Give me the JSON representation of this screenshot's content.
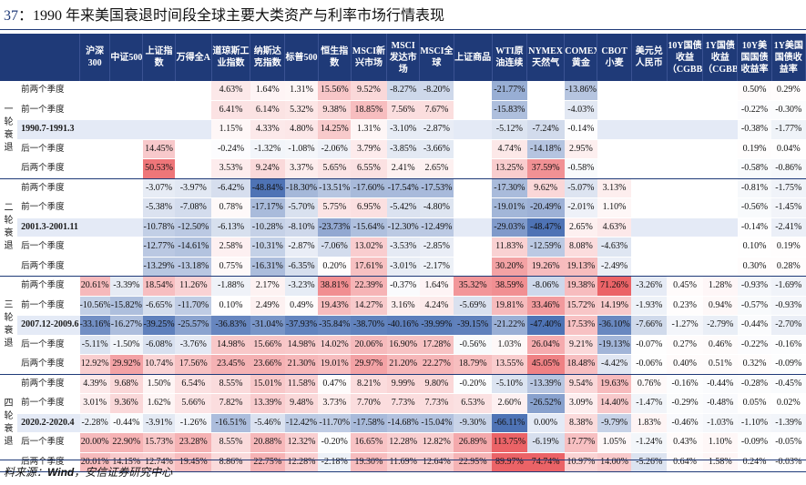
{
  "title": {
    "number": "37",
    "text": "1990 年来美国衰退时间段全球主要大类资产与利率市场行情表现"
  },
  "source": {
    "prefix": "料来源：",
    "name": "Wind",
    "suffix": "，安信证券研究中心"
  },
  "colors": {
    "header_bg": "#1f3a78",
    "positive_max": "#e8474c",
    "negative_max": "#2f5aa8",
    "mid_row_bg": "#e4eaf6"
  },
  "columns": [
    "沪深300",
    "中证500",
    "上证指数",
    "万得全A",
    "道琼斯工业指数",
    "纳斯达克指数",
    "标普500",
    "恒生指数",
    "MSCI新兴市场",
    "MSCI发达市场",
    "MSCI全球",
    "上证商品",
    "WTI原油连续",
    "NYMEX天然气",
    "COMEX黄金",
    "CBOT小麦",
    "美元兑人民币",
    "10Y国债收益（CGBB）",
    "1Y国债收益（CGBB）",
    "10Y美国国债收益率",
    "1Y美国国债收益率"
  ],
  "groups": [
    {
      "name": "一轮衰退",
      "rows": [
        {
          "label": "前两个季度",
          "values": [
            "",
            "",
            "",
            "",
            "4.63%",
            "1.64%",
            "1.31%",
            "15.56%",
            "9.52%",
            "-8.27%",
            "-8.20%",
            "",
            "-21.77%",
            "",
            "-13.86%",
            "",
            "",
            "",
            "",
            "0.50%",
            "0.29%"
          ]
        },
        {
          "label": "前一个季度",
          "values": [
            "",
            "",
            "",
            "",
            "6.41%",
            "6.14%",
            "5.32%",
            "9.38%",
            "18.85%",
            "7.56%",
            "7.67%",
            "",
            "-15.83%",
            "",
            "-4.03%",
            "",
            "",
            "",
            "",
            "-0.22%",
            "-0.30%"
          ]
        },
        {
          "label": "1990.7-1991.3",
          "values": [
            "",
            "",
            "",
            "",
            "1.15%",
            "4.33%",
            "4.80%",
            "14.25%",
            "1.31%",
            "-3.10%",
            "-2.87%",
            "",
            "-5.12%",
            "-7.24%",
            "-0.14%",
            "",
            "",
            "",
            "",
            "-0.38%",
            "-1.77%"
          ]
        },
        {
          "label": "后一个季度",
          "values": [
            "",
            "",
            "14.45%",
            "",
            "-0.24%",
            "-1.32%",
            "-1.08%",
            "-2.06%",
            "3.79%",
            "-3.85%",
            "-3.66%",
            "",
            "4.74%",
            "-14.18%",
            "2.95%",
            "",
            "",
            "",
            "",
            "0.19%",
            "0.04%"
          ]
        },
        {
          "label": "后两个季度",
          "values": [
            "",
            "",
            "50.53%",
            "",
            "3.53%",
            "9.24%",
            "3.37%",
            "5.65%",
            "6.55%",
            "2.41%",
            "2.65%",
            "",
            "13.25%",
            "37.59%",
            "-0.58%",
            "",
            "",
            "",
            "",
            "-0.58%",
            "-0.86%"
          ]
        }
      ]
    },
    {
      "name": "二轮衰退",
      "rows": [
        {
          "label": "前两个季度",
          "values": [
            "",
            "",
            "-3.07%",
            "-3.97%",
            "-6.42%",
            "-48.84%",
            "-18.30%",
            "-13.51%",
            "-17.60%",
            "-17.54%",
            "-17.53%",
            "",
            "-17.30%",
            "9.62%",
            "-5.07%",
            "3.13%",
            "",
            "",
            "",
            "-0.81%",
            "-1.75%"
          ]
        },
        {
          "label": "前一个季度",
          "values": [
            "",
            "",
            "-5.38%",
            "-7.08%",
            "0.78%",
            "-17.17%",
            "-5.70%",
            "5.75%",
            "6.95%",
            "-5.42%",
            "-4.80%",
            "",
            "-19.01%",
            "-20.49%",
            "-2.01%",
            "1.10%",
            "",
            "",
            "",
            "-0.56%",
            "-1.45%"
          ]
        },
        {
          "label": "2001.3-2001.11",
          "values": [
            "",
            "",
            "-10.78%",
            "-12.50%",
            "-6.13%",
            "-10.28%",
            "-8.10%",
            "-23.73%",
            "-15.64%",
            "-12.30%",
            "-12.49%",
            "",
            "-29.03%",
            "-48.47%",
            "2.65%",
            "4.63%",
            "",
            "",
            "",
            "-0.14%",
            "-2.41%"
          ]
        },
        {
          "label": "后一个季度",
          "values": [
            "",
            "",
            "-12.77%",
            "-14.61%",
            "2.58%",
            "-10.31%",
            "-2.87%",
            "-7.06%",
            "13.02%",
            "-3.53%",
            "-2.85%",
            "",
            "11.83%",
            "-12.59%",
            "8.08%",
            "-4.63%",
            "",
            "",
            "",
            "0.10%",
            "0.19%"
          ]
        },
        {
          "label": "后两个季度",
          "values": [
            "",
            "",
            "-13.29%",
            "-13.18%",
            "0.75%",
            "-16.31%",
            "-6.35%",
            "0.20%",
            "17.61%",
            "-3.01%",
            "-2.17%",
            "",
            "30.20%",
            "19.26%",
            "19.13%",
            "-2.49%",
            "",
            "",
            "",
            "0.30%",
            "0.28%"
          ]
        }
      ]
    },
    {
      "name": "三轮衰退",
      "rows": [
        {
          "label": "前两个季度",
          "values": [
            "20.61%",
            "-3.39%",
            "18.54%",
            "11.26%",
            "-1.88%",
            "2.17%",
            "-3.23%",
            "38.81%",
            "22.39%",
            "-0.37%",
            "1.64%",
            "35.32%",
            "38.59%",
            "-8.06%",
            "19.38%",
            "71.26%",
            "-3.26%",
            "0.45%",
            "1.28%",
            "-0.93%",
            "-1.69%"
          ]
        },
        {
          "label": "前一个季度",
          "values": [
            "-10.56%",
            "-15.82%",
            "-6.65%",
            "-11.70%",
            "0.10%",
            "2.49%",
            "0.49%",
            "19.43%",
            "14.27%",
            "3.16%",
            "4.24%",
            "-5.69%",
            "19.81%",
            "33.46%",
            "15.72%",
            "14.19%",
            "-1.93%",
            "0.23%",
            "0.94%",
            "-0.57%",
            "-0.93%"
          ]
        },
        {
          "label": "2007.12-2009.6",
          "values": [
            "-33.16%",
            "-16.27%",
            "-39.25%",
            "-25.57%",
            "-36.83%",
            "-31.04%",
            "-37.93%",
            "-35.84%",
            "-38.70%",
            "-40.16%",
            "-39.99%",
            "-39.15%",
            "-21.22%",
            "-47.40%",
            "17.53%",
            "-36.10%",
            "-7.66%",
            "-1.27%",
            "-2.79%",
            "-0.44%",
            "-2.70%"
          ]
        },
        {
          "label": "后一个季度",
          "values": [
            "-5.11%",
            "-1.50%",
            "-6.08%",
            "-3.76%",
            "14.98%",
            "15.66%",
            "14.98%",
            "14.02%",
            "20.06%",
            "16.90%",
            "17.28%",
            "-0.56%",
            "1.03%",
            "26.04%",
            "9.21%",
            "-19.13%",
            "-0.07%",
            "0.27%",
            "0.46%",
            "-0.22%",
            "-0.16%"
          ]
        },
        {
          "label": "后两个季度",
          "values": [
            "12.92%",
            "29.92%",
            "10.74%",
            "17.56%",
            "23.45%",
            "23.66%",
            "21.30%",
            "19.01%",
            "29.97%",
            "21.20%",
            "22.27%",
            "18.79%",
            "13.55%",
            "45.05%",
            "18.48%",
            "-4.42%",
            "-0.06%",
            "0.40%",
            "0.51%",
            "0.32%",
            "-0.09%"
          ]
        }
      ]
    },
    {
      "name": "四轮衰退",
      "rows": [
        {
          "label": "前两个季度",
          "values": [
            "4.39%",
            "9.68%",
            "1.50%",
            "6.54%",
            "8.55%",
            "15.01%",
            "11.58%",
            "0.47%",
            "8.21%",
            "9.99%",
            "9.80%",
            "-0.20%",
            "-5.10%",
            "-13.39%",
            "9.54%",
            "19.63%",
            "0.76%",
            "-0.16%",
            "-0.44%",
            "-0.28%",
            "-0.45%"
          ]
        },
        {
          "label": "前一个季度",
          "values": [
            "3.01%",
            "9.36%",
            "1.62%",
            "5.66%",
            "7.82%",
            "13.39%",
            "9.48%",
            "3.73%",
            "7.70%",
            "7.73%",
            "7.73%",
            "6.53%",
            "2.60%",
            "-26.52%",
            "3.09%",
            "14.40%",
            "-1.47%",
            "-0.29%",
            "-0.48%",
            "0.05%",
            "0.02%"
          ]
        },
        {
          "label": "2020.2-2020.4",
          "values": [
            "-2.28%",
            "-0.44%",
            "-3.91%",
            "-1.26%",
            "-16.51%",
            "-5.46%",
            "-12.42%",
            "-11.70%",
            "-17.58%",
            "-14.68%",
            "-15.04%",
            "-9.30%",
            "-66.11%",
            "0.00%",
            "8.38%",
            "-9.79%",
            "1.83%",
            "-0.46%",
            "-1.03%",
            "-1.10%",
            "-1.39%"
          ]
        },
        {
          "label": "后一个季度",
          "values": [
            "20.00%",
            "22.90%",
            "15.73%",
            "23.28%",
            "8.55%",
            "20.88%",
            "12.32%",
            "-0.20%",
            "16.65%",
            "12.28%",
            "12.82%",
            "26.89%",
            "113.75%",
            "-6.19%",
            "17.77%",
            "1.05%",
            "-1.24%",
            "0.43%",
            "1.10%",
            "-0.09%",
            "-0.05%"
          ]
        },
        {
          "label": "后两个季度",
          "values": [
            "20.01%",
            "14.15%",
            "12.74%",
            "19.45%",
            "8.86%",
            "22.75%",
            "12.28%",
            "-2.18%",
            "19.30%",
            "11.69%",
            "12.64%",
            "22.95%",
            "89.97%",
            "74.74%",
            "10.97%",
            "14.00%",
            "-5.26%",
            "0.64%",
            "1.58%",
            "0.24%",
            "-0.03%"
          ]
        }
      ]
    }
  ]
}
